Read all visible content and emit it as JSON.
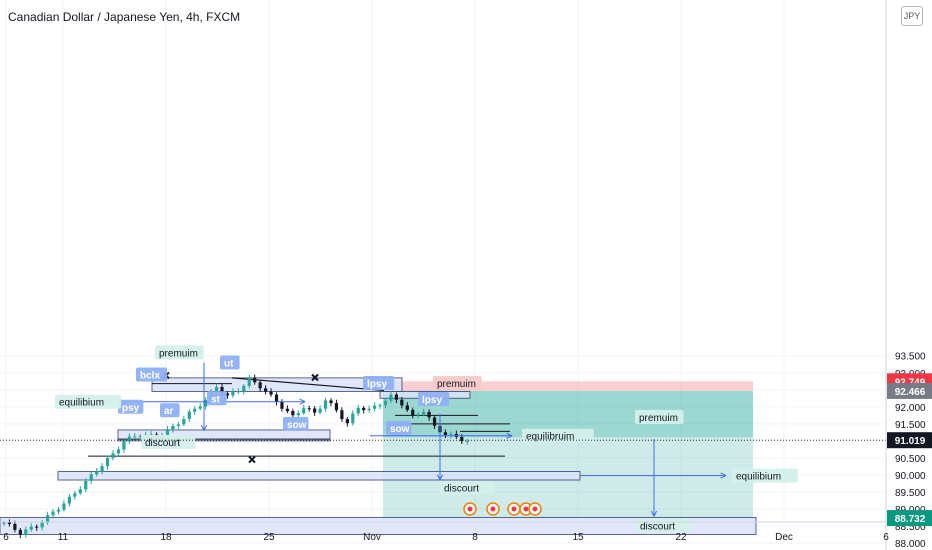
{
  "header": {
    "symbol_title": "Canadian Dollar / Japanese Yen, 4h, FXCM",
    "currency_badge": "JPY"
  },
  "colors": {
    "up": "#26a69a",
    "down": "#131722",
    "zone_fill": "#dbe3fb",
    "zone_stroke": "#3b4a7a",
    "arrow": "#3d6ef0",
    "profit_fill": "#26a69a",
    "loss_fill": "#f4a8a8",
    "label_bg": "#d4f0ea",
    "tag_bg": "#8fb0f5",
    "price_red": "#f23645",
    "price_gray": "#787b86",
    "price_black": "#131722",
    "price_green": "#089981"
  },
  "chart_data": {
    "type": "candlestick",
    "instrument": "CADJPY",
    "timeframe": "4h",
    "y_axis": {
      "ticks": [
        "93.500",
        "93.000",
        "92.500",
        "92.000",
        "91.500",
        "91.000",
        "90.500",
        "90.000",
        "89.500",
        "89.000",
        "88.500",
        "88.000"
      ],
      "range": [
        87.95,
        93.85
      ]
    },
    "x_axis": {
      "ticks": [
        "6",
        "11",
        "18",
        "25",
        "Nov",
        "8",
        "15",
        "22",
        "Dec",
        "6"
      ]
    },
    "price_labels": [
      {
        "value": "92.749",
        "style": "red"
      },
      {
        "value": "92.466",
        "style": "gray"
      },
      {
        "value": "91.019",
        "style": "black"
      },
      {
        "value": "88.732",
        "style": "green"
      }
    ],
    "last_price": 91.019,
    "position": {
      "entry": 92.466,
      "stop": 92.749,
      "target": 88.732
    },
    "candles_close_path": [
      [
        0,
        88.6
      ],
      [
        3,
        88.3
      ],
      [
        6,
        88.5
      ],
      [
        9,
        88.9
      ],
      [
        12,
        89.3
      ],
      [
        15,
        89.8
      ],
      [
        18,
        90.3
      ],
      [
        20,
        90.6
      ],
      [
        22,
        91.0
      ],
      [
        25,
        91.2
      ],
      [
        28,
        91.1
      ],
      [
        31,
        91.4
      ],
      [
        34,
        91.8
      ],
      [
        37,
        92.2
      ],
      [
        39,
        92.6
      ],
      [
        41,
        92.3
      ],
      [
        43,
        92.5
      ],
      [
        45,
        92.8
      ],
      [
        47,
        92.6
      ],
      [
        49,
        92.3
      ],
      [
        51,
        92.0
      ],
      [
        53,
        91.7
      ],
      [
        55,
        92.0
      ],
      [
        57,
        91.8
      ],
      [
        59,
        92.2
      ],
      [
        61,
        91.9
      ],
      [
        63,
        91.5
      ],
      [
        65,
        92.0
      ],
      [
        67,
        91.9
      ],
      [
        69,
        92.1
      ],
      [
        71,
        92.3
      ],
      [
        73,
        92.1
      ],
      [
        75,
        91.7
      ],
      [
        77,
        91.9
      ],
      [
        79,
        91.4
      ],
      [
        81,
        91.2
      ],
      [
        83,
        91.1
      ],
      [
        85,
        91.0
      ]
    ],
    "annotations": [
      "premuim",
      "ut",
      "bclx",
      "psy",
      "equilibium",
      "st",
      "ar",
      "sow",
      "discourt",
      "lpsy",
      "premuim",
      "lpsy",
      "sow",
      "equilibruim",
      "discourt",
      "premuim",
      "equilibium",
      "discourt"
    ]
  }
}
